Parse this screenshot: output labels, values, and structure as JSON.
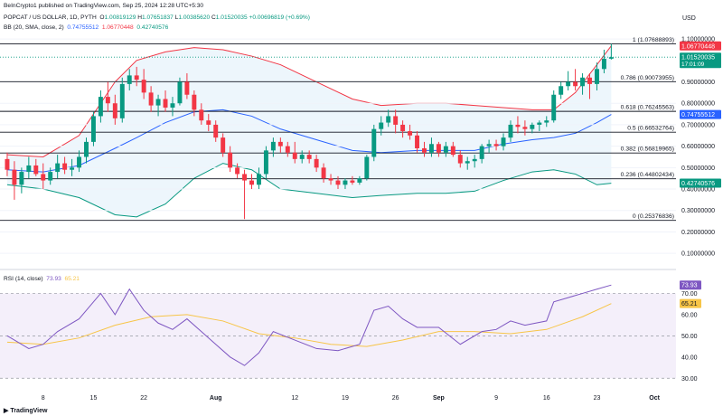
{
  "header": {
    "published": "BeInCrypto1 published on TradingView.com, Sep 25, 2024 12:28 UTC+5:30",
    "symbol": "POPCAT / US DOLLAR, 1D, PYTH",
    "ohlc": {
      "o_label": "O",
      "o": "1.00819129",
      "h_label": "H",
      "h": "1.07651837",
      "l_label": "L",
      "l": "1.00385620",
      "c_label": "C",
      "c": "1.01520035",
      "change": "+0.00696819 (+0.69%)"
    },
    "bb_label": "BB (20, SMA, close, 2)",
    "bb_values": [
      "0.74755512",
      "1.06770448",
      "0.42740576"
    ],
    "rsi_label": "RSI (14, close)",
    "rsi_values": [
      "73.93",
      "65.21"
    ]
  },
  "footer": {
    "logo": "TradingView"
  },
  "colors": {
    "up": "#089981",
    "down": "#f23645",
    "bb_basis": "#2962ff",
    "bb_upper": "#f23645",
    "bb_lower": "#089981",
    "bb_fill": "#eaf4fc",
    "rsi": "#7e57c2",
    "rsi_ma": "#f7c548",
    "rsi_band": "#ece4f7",
    "fib": "#131722"
  },
  "chart_data": [
    {
      "type": "candlestick",
      "title": "POPCAT / US DOLLAR, 1D, PYTH",
      "currency": "USD",
      "price_axis_labels": [
        "1.10000000",
        "0.90000000",
        "0.80000000",
        "0.70000000",
        "0.60000000",
        "0.50000000",
        "0.40000000",
        "0.30000000",
        "0.20000000",
        "0.10000000"
      ],
      "ylim": [
        0.05,
        1.13
      ],
      "x_tick_labels": [
        {
          "label": "8",
          "date": "2024-07-08"
        },
        {
          "label": "15",
          "date": "2024-07-15"
        },
        {
          "label": "22",
          "date": "2024-07-22"
        },
        {
          "label": "Aug",
          "date": "2024-08-01"
        },
        {
          "label": "12",
          "date": "2024-08-12"
        },
        {
          "label": "19",
          "date": "2024-08-19"
        },
        {
          "label": "26",
          "date": "2024-08-26"
        },
        {
          "label": "Sep",
          "date": "2024-09-01"
        },
        {
          "label": "9",
          "date": "2024-09-09"
        },
        {
          "label": "16",
          "date": "2024-09-16"
        },
        {
          "label": "23",
          "date": "2024-09-23"
        },
        {
          "label": "Oct",
          "date": "2024-10-01"
        }
      ],
      "xlim": [
        "2024-07-02",
        "2024-10-04"
      ],
      "candles": [
        {
          "date": "2024-07-03",
          "o": 0.54,
          "h": 0.57,
          "l": 0.46,
          "c": 0.49
        },
        {
          "date": "2024-07-04",
          "o": 0.49,
          "h": 0.53,
          "l": 0.35,
          "c": 0.42
        },
        {
          "date": "2024-07-05",
          "o": 0.42,
          "h": 0.5,
          "l": 0.38,
          "c": 0.48
        },
        {
          "date": "2024-07-06",
          "o": 0.48,
          "h": 0.55,
          "l": 0.45,
          "c": 0.51
        },
        {
          "date": "2024-07-07",
          "o": 0.51,
          "h": 0.54,
          "l": 0.46,
          "c": 0.47
        },
        {
          "date": "2024-07-08",
          "o": 0.47,
          "h": 0.52,
          "l": 0.4,
          "c": 0.44
        },
        {
          "date": "2024-07-09",
          "o": 0.44,
          "h": 0.5,
          "l": 0.42,
          "c": 0.48
        },
        {
          "date": "2024-07-10",
          "o": 0.48,
          "h": 0.56,
          "l": 0.45,
          "c": 0.52
        },
        {
          "date": "2024-07-11",
          "o": 0.52,
          "h": 0.55,
          "l": 0.47,
          "c": 0.49
        },
        {
          "date": "2024-07-12",
          "o": 0.49,
          "h": 0.54,
          "l": 0.46,
          "c": 0.5
        },
        {
          "date": "2024-07-13",
          "o": 0.5,
          "h": 0.58,
          "l": 0.48,
          "c": 0.55
        },
        {
          "date": "2024-07-14",
          "o": 0.55,
          "h": 0.64,
          "l": 0.52,
          "c": 0.62
        },
        {
          "date": "2024-07-15",
          "o": 0.62,
          "h": 0.76,
          "l": 0.6,
          "c": 0.74
        },
        {
          "date": "2024-07-16",
          "o": 0.74,
          "h": 0.86,
          "l": 0.71,
          "c": 0.83
        },
        {
          "date": "2024-07-17",
          "o": 0.83,
          "h": 0.9,
          "l": 0.76,
          "c": 0.8
        },
        {
          "date": "2024-07-18",
          "o": 0.8,
          "h": 0.84,
          "l": 0.7,
          "c": 0.73
        },
        {
          "date": "2024-07-19",
          "o": 0.73,
          "h": 0.92,
          "l": 0.71,
          "c": 0.89
        },
        {
          "date": "2024-07-20",
          "o": 0.89,
          "h": 0.96,
          "l": 0.86,
          "c": 0.93
        },
        {
          "date": "2024-07-21",
          "o": 0.93,
          "h": 0.97,
          "l": 0.88,
          "c": 0.91
        },
        {
          "date": "2024-07-22",
          "o": 0.91,
          "h": 0.96,
          "l": 0.82,
          "c": 0.85
        },
        {
          "date": "2024-07-23",
          "o": 0.85,
          "h": 0.88,
          "l": 0.76,
          "c": 0.79
        },
        {
          "date": "2024-07-24",
          "o": 0.79,
          "h": 0.84,
          "l": 0.74,
          "c": 0.82
        },
        {
          "date": "2024-07-25",
          "o": 0.82,
          "h": 0.86,
          "l": 0.76,
          "c": 0.78
        },
        {
          "date": "2024-07-26",
          "o": 0.78,
          "h": 0.83,
          "l": 0.74,
          "c": 0.8
        },
        {
          "date": "2024-07-27",
          "o": 0.8,
          "h": 0.92,
          "l": 0.79,
          "c": 0.9
        },
        {
          "date": "2024-07-28",
          "o": 0.9,
          "h": 0.94,
          "l": 0.82,
          "c": 0.84
        },
        {
          "date": "2024-07-29",
          "o": 0.84,
          "h": 0.86,
          "l": 0.74,
          "c": 0.77
        },
        {
          "date": "2024-07-30",
          "o": 0.77,
          "h": 0.8,
          "l": 0.7,
          "c": 0.72
        },
        {
          "date": "2024-07-31",
          "o": 0.72,
          "h": 0.75,
          "l": 0.67,
          "c": 0.7
        },
        {
          "date": "2024-08-01",
          "o": 0.7,
          "h": 0.72,
          "l": 0.62,
          "c": 0.64
        },
        {
          "date": "2024-08-02",
          "o": 0.64,
          "h": 0.66,
          "l": 0.55,
          "c": 0.57
        },
        {
          "date": "2024-08-03",
          "o": 0.57,
          "h": 0.6,
          "l": 0.48,
          "c": 0.5
        },
        {
          "date": "2024-08-04",
          "o": 0.5,
          "h": 0.52,
          "l": 0.45,
          "c": 0.47
        },
        {
          "date": "2024-08-05",
          "o": 0.47,
          "h": 0.49,
          "l": 0.26,
          "c": 0.44
        },
        {
          "date": "2024-08-06",
          "o": 0.44,
          "h": 0.47,
          "l": 0.4,
          "c": 0.42
        },
        {
          "date": "2024-08-07",
          "o": 0.42,
          "h": 0.5,
          "l": 0.4,
          "c": 0.47
        },
        {
          "date": "2024-08-08",
          "o": 0.47,
          "h": 0.6,
          "l": 0.45,
          "c": 0.58
        },
        {
          "date": "2024-08-09",
          "o": 0.58,
          "h": 0.64,
          "l": 0.55,
          "c": 0.62
        },
        {
          "date": "2024-08-10",
          "o": 0.62,
          "h": 0.64,
          "l": 0.57,
          "c": 0.6
        },
        {
          "date": "2024-08-11",
          "o": 0.6,
          "h": 0.62,
          "l": 0.55,
          "c": 0.57
        },
        {
          "date": "2024-08-12",
          "o": 0.57,
          "h": 0.62,
          "l": 0.52,
          "c": 0.54
        },
        {
          "date": "2024-08-13",
          "o": 0.54,
          "h": 0.58,
          "l": 0.52,
          "c": 0.56
        },
        {
          "date": "2024-08-14",
          "o": 0.56,
          "h": 0.58,
          "l": 0.52,
          "c": 0.54
        },
        {
          "date": "2024-08-15",
          "o": 0.54,
          "h": 0.56,
          "l": 0.48,
          "c": 0.5
        },
        {
          "date": "2024-08-16",
          "o": 0.5,
          "h": 0.52,
          "l": 0.43,
          "c": 0.45
        },
        {
          "date": "2024-08-17",
          "o": 0.45,
          "h": 0.47,
          "l": 0.42,
          "c": 0.44
        },
        {
          "date": "2024-08-18",
          "o": 0.44,
          "h": 0.46,
          "l": 0.4,
          "c": 0.42
        },
        {
          "date": "2024-08-19",
          "o": 0.42,
          "h": 0.45,
          "l": 0.4,
          "c": 0.44
        },
        {
          "date": "2024-08-20",
          "o": 0.44,
          "h": 0.46,
          "l": 0.42,
          "c": 0.43
        },
        {
          "date": "2024-08-21",
          "o": 0.43,
          "h": 0.46,
          "l": 0.42,
          "c": 0.45
        },
        {
          "date": "2024-08-22",
          "o": 0.45,
          "h": 0.56,
          "l": 0.44,
          "c": 0.55
        },
        {
          "date": "2024-08-23",
          "o": 0.55,
          "h": 0.7,
          "l": 0.53,
          "c": 0.68
        },
        {
          "date": "2024-08-24",
          "o": 0.68,
          "h": 0.74,
          "l": 0.65,
          "c": 0.71
        },
        {
          "date": "2024-08-25",
          "o": 0.71,
          "h": 0.77,
          "l": 0.69,
          "c": 0.74
        },
        {
          "date": "2024-08-26",
          "o": 0.74,
          "h": 0.77,
          "l": 0.66,
          "c": 0.7
        },
        {
          "date": "2024-08-27",
          "o": 0.7,
          "h": 0.72,
          "l": 0.64,
          "c": 0.67
        },
        {
          "date": "2024-08-28",
          "o": 0.67,
          "h": 0.7,
          "l": 0.63,
          "c": 0.65
        },
        {
          "date": "2024-08-29",
          "o": 0.65,
          "h": 0.67,
          "l": 0.57,
          "c": 0.59
        },
        {
          "date": "2024-08-30",
          "o": 0.59,
          "h": 0.62,
          "l": 0.55,
          "c": 0.57
        },
        {
          "date": "2024-08-31",
          "o": 0.57,
          "h": 0.64,
          "l": 0.55,
          "c": 0.61
        },
        {
          "date": "2024-09-01",
          "o": 0.61,
          "h": 0.62,
          "l": 0.55,
          "c": 0.57
        },
        {
          "date": "2024-09-02",
          "o": 0.57,
          "h": 0.62,
          "l": 0.55,
          "c": 0.6
        },
        {
          "date": "2024-09-03",
          "o": 0.6,
          "h": 0.62,
          "l": 0.55,
          "c": 0.56
        },
        {
          "date": "2024-09-04",
          "o": 0.56,
          "h": 0.58,
          "l": 0.5,
          "c": 0.52
        },
        {
          "date": "2024-09-05",
          "o": 0.52,
          "h": 0.55,
          "l": 0.49,
          "c": 0.53
        },
        {
          "date": "2024-09-06",
          "o": 0.53,
          "h": 0.56,
          "l": 0.5,
          "c": 0.54
        },
        {
          "date": "2024-09-07",
          "o": 0.54,
          "h": 0.61,
          "l": 0.52,
          "c": 0.6
        },
        {
          "date": "2024-09-08",
          "o": 0.6,
          "h": 0.63,
          "l": 0.57,
          "c": 0.61
        },
        {
          "date": "2024-09-09",
          "o": 0.61,
          "h": 0.63,
          "l": 0.58,
          "c": 0.6
        },
        {
          "date": "2024-09-10",
          "o": 0.6,
          "h": 0.66,
          "l": 0.58,
          "c": 0.64
        },
        {
          "date": "2024-09-11",
          "o": 0.64,
          "h": 0.72,
          "l": 0.62,
          "c": 0.7
        },
        {
          "date": "2024-09-12",
          "o": 0.7,
          "h": 0.74,
          "l": 0.66,
          "c": 0.69
        },
        {
          "date": "2024-09-13",
          "o": 0.69,
          "h": 0.72,
          "l": 0.65,
          "c": 0.68
        },
        {
          "date": "2024-09-14",
          "o": 0.68,
          "h": 0.71,
          "l": 0.66,
          "c": 0.7
        },
        {
          "date": "2024-09-15",
          "o": 0.7,
          "h": 0.72,
          "l": 0.67,
          "c": 0.71
        },
        {
          "date": "2024-09-16",
          "o": 0.71,
          "h": 0.74,
          "l": 0.69,
          "c": 0.72
        },
        {
          "date": "2024-09-17",
          "o": 0.72,
          "h": 0.86,
          "l": 0.71,
          "c": 0.84
        },
        {
          "date": "2024-09-18",
          "o": 0.84,
          "h": 0.9,
          "l": 0.82,
          "c": 0.88
        },
        {
          "date": "2024-09-19",
          "o": 0.88,
          "h": 0.95,
          "l": 0.86,
          "c": 0.9
        },
        {
          "date": "2024-09-20",
          "o": 0.9,
          "h": 0.96,
          "l": 0.86,
          "c": 0.88
        },
        {
          "date": "2024-09-21",
          "o": 0.88,
          "h": 0.94,
          "l": 0.84,
          "c": 0.92
        },
        {
          "date": "2024-09-22",
          "o": 0.92,
          "h": 0.94,
          "l": 0.82,
          "c": 0.89
        },
        {
          "date": "2024-09-23",
          "o": 0.89,
          "h": 0.99,
          "l": 0.86,
          "c": 0.96
        },
        {
          "date": "2024-09-24",
          "o": 0.96,
          "h": 1.05,
          "l": 0.94,
          "c": 1.008
        },
        {
          "date": "2024-09-25",
          "o": 1.008,
          "h": 1.077,
          "l": 1.004,
          "c": 1.015
        }
      ],
      "bollinger": {
        "label": "BB (20, SMA, close, 2)",
        "dates": [
          "2024-07-03",
          "2024-07-08",
          "2024-07-13",
          "2024-07-18",
          "2024-07-21",
          "2024-07-25",
          "2024-07-29",
          "2024-08-02",
          "2024-08-06",
          "2024-08-10",
          "2024-08-15",
          "2024-08-20",
          "2024-08-24",
          "2024-08-29",
          "2024-09-02",
          "2024-09-06",
          "2024-09-10",
          "2024-09-14",
          "2024-09-17",
          "2024-09-20",
          "2024-09-23",
          "2024-09-25"
        ],
        "upper": [
          0.56,
          0.55,
          0.65,
          0.9,
          1.0,
          1.04,
          1.06,
          1.05,
          1.02,
          0.98,
          0.9,
          0.82,
          0.79,
          0.8,
          0.8,
          0.79,
          0.78,
          0.77,
          0.77,
          0.85,
          0.98,
          1.068
        ],
        "basis": [
          0.49,
          0.48,
          0.51,
          0.59,
          0.64,
          0.71,
          0.76,
          0.77,
          0.74,
          0.68,
          0.63,
          0.58,
          0.57,
          0.58,
          0.58,
          0.58,
          0.61,
          0.63,
          0.64,
          0.66,
          0.71,
          0.748
        ],
        "lower": [
          0.42,
          0.4,
          0.36,
          0.28,
          0.27,
          0.33,
          0.45,
          0.52,
          0.49,
          0.4,
          0.38,
          0.36,
          0.37,
          0.38,
          0.38,
          0.39,
          0.44,
          0.48,
          0.49,
          0.47,
          0.42,
          0.427
        ]
      },
      "fibonacci": [
        {
          "label": "1 (1.07688893)",
          "value": 1.07688893
        },
        {
          "label": "0.786 (0.90073955)",
          "value": 0.90073955
        },
        {
          "label": "0.618 (0.76245563)",
          "value": 0.76245563
        },
        {
          "label": "0.5 (0.66532764)",
          "value": 0.66532764
        },
        {
          "label": "0.382 (0.56819965)",
          "value": 0.56819965
        },
        {
          "label": "0.236 (0.44802434)",
          "value": 0.44802434
        },
        {
          "label": "0 (0.25376836)",
          "value": 0.25376836
        }
      ],
      "price_badges": [
        {
          "label": "1.06770448",
          "value": 1.06770448,
          "color": "#f23645"
        },
        {
          "label": "1.01520035",
          "sub": "17:01:09",
          "value": 1.01520035,
          "color": "#089981"
        },
        {
          "label": "0.74755512",
          "value": 0.74755512,
          "color": "#2962ff"
        },
        {
          "label": "0.42740576",
          "value": 0.42740576,
          "color": "#089981"
        }
      ]
    },
    {
      "type": "line",
      "title": "RSI (14, close)",
      "ylim": [
        25,
        77
      ],
      "axis_labels": [
        "70.00",
        "60.00",
        "50.00",
        "40.00",
        "30.00"
      ],
      "band": [
        30,
        70
      ],
      "mid": 50,
      "series": [
        {
          "name": "RSI",
          "dates": [
            "2024-07-03",
            "2024-07-06",
            "2024-07-08",
            "2024-07-10",
            "2024-07-13",
            "2024-07-15",
            "2024-07-16",
            "2024-07-18",
            "2024-07-20",
            "2024-07-22",
            "2024-07-24",
            "2024-07-26",
            "2024-07-28",
            "2024-07-30",
            "2024-08-01",
            "2024-08-03",
            "2024-08-05",
            "2024-08-07",
            "2024-08-09",
            "2024-08-12",
            "2024-08-15",
            "2024-08-18",
            "2024-08-21",
            "2024-08-23",
            "2024-08-25",
            "2024-08-27",
            "2024-08-29",
            "2024-09-01",
            "2024-09-04",
            "2024-09-07",
            "2024-09-09",
            "2024-09-11",
            "2024-09-13",
            "2024-09-16",
            "2024-09-17",
            "2024-09-19",
            "2024-09-21",
            "2024-09-23",
            "2024-09-25"
          ],
          "values": [
            50,
            44,
            46,
            52,
            58,
            66,
            70,
            60,
            72,
            62,
            56,
            53,
            58,
            52,
            46,
            40,
            36,
            42,
            52,
            48,
            44,
            43,
            46,
            62,
            64,
            58,
            54,
            54,
            46,
            52,
            53,
            57,
            55,
            57,
            66,
            68,
            70,
            72,
            73.93
          ]
        },
        {
          "name": "RSI-based MA",
          "dates": [
            "2024-07-03",
            "2024-07-08",
            "2024-07-13",
            "2024-07-18",
            "2024-07-23",
            "2024-07-28",
            "2024-08-02",
            "2024-08-07",
            "2024-08-12",
            "2024-08-17",
            "2024-08-22",
            "2024-08-27",
            "2024-09-01",
            "2024-09-06",
            "2024-09-11",
            "2024-09-16",
            "2024-09-21",
            "2024-09-25"
          ],
          "values": [
            47,
            46,
            49,
            55,
            59,
            60,
            57,
            51,
            49,
            46,
            45,
            48,
            52,
            52,
            51,
            53,
            59,
            65.21
          ]
        }
      ]
    }
  ]
}
